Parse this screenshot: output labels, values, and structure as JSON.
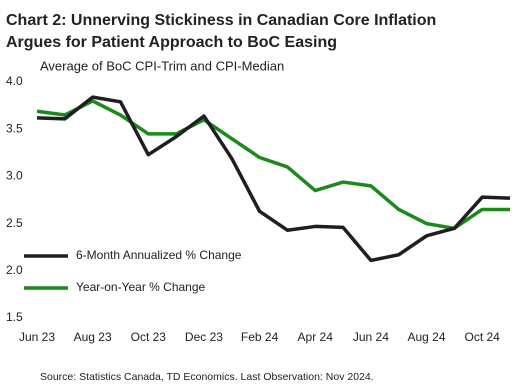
{
  "chart_data": {
    "type": "line",
    "title": [
      "Chart 2: Unnerving Stickiness in Canadian Core Inflation",
      "Argues for Patient Approach to BoC Easing"
    ],
    "subtitle": "Average of BoC CPI-Trim and CPI-Median",
    "source": "Source: Statistics Canada, TD Economics. Last Observation: Nov 2024.",
    "categories": [
      "Jun 23",
      null,
      "Aug 23",
      null,
      "Oct 23",
      null,
      "Dec 23",
      null,
      "Feb 24",
      null,
      "Apr 24",
      null,
      "Jun 24",
      null,
      "Aug 24",
      null,
      "Oct 24",
      null
    ],
    "series": [
      {
        "name": "6-Month Annualized % Change",
        "color": "#1f1f1f",
        "values": [
          3.62,
          3.61,
          3.84,
          3.79,
          3.23,
          3.42,
          3.64,
          3.19,
          2.63,
          2.43,
          2.47,
          2.46,
          2.11,
          2.17,
          2.37,
          2.45,
          2.78,
          2.77
        ]
      },
      {
        "name": "Year-on-Year % Change",
        "color": "#1a8a1a",
        "values": [
          3.69,
          3.65,
          3.8,
          3.65,
          3.45,
          3.45,
          3.6,
          3.4,
          3.2,
          3.1,
          2.85,
          2.94,
          2.9,
          2.65,
          2.5,
          2.45,
          2.65,
          2.65
        ]
      }
    ],
    "ylim": [
      1.5,
      4.0
    ],
    "yticks": [
      {
        "value": 1.5,
        "label": "1.5"
      },
      {
        "value": 2,
        "label": "2.0"
      },
      {
        "value": 2.5,
        "label": "2.5"
      },
      {
        "value": 3,
        "label": "3.0"
      },
      {
        "value": 3.5,
        "label": "3.5"
      },
      {
        "value": 4,
        "label": "4.0"
      }
    ],
    "grid": false
  }
}
